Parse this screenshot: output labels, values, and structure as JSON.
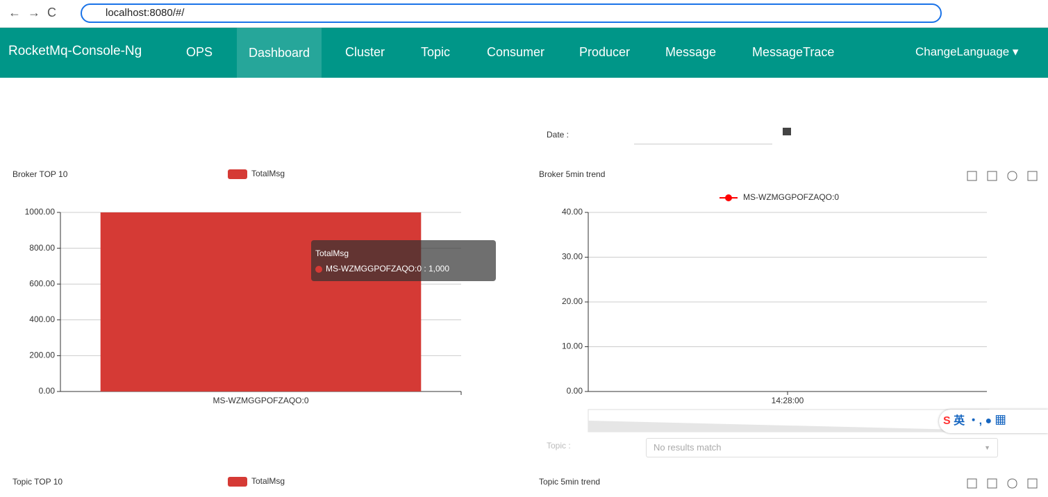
{
  "browser": {
    "url": "localhost:8080/#/"
  },
  "nav": {
    "brand": "RocketMq-Console-Ng",
    "items": [
      "OPS",
      "Dashboard",
      "Cluster",
      "Topic",
      "Consumer",
      "Producer",
      "Message",
      "MessageTrace"
    ],
    "active": "Dashboard",
    "language": "ChangeLanguage"
  },
  "date_label": "Date :",
  "topic_label": "Topic :",
  "topic_placeholder": "No results match",
  "ime": "英",
  "chart_data": [
    {
      "type": "bar",
      "title": "Broker TOP 10",
      "categories": [
        "MS-WZMGGPOFZAQO:0"
      ],
      "series": [
        {
          "name": "TotalMsg",
          "color": "#d53a35",
          "values": [
            1000
          ]
        }
      ],
      "ylim": [
        0,
        1000
      ],
      "yticks": [
        {
          "value": 0,
          "label": "0.00"
        },
        {
          "value": 200,
          "label": "200.00"
        },
        {
          "value": 400,
          "label": "400.00"
        },
        {
          "value": 600,
          "label": "600.00"
        },
        {
          "value": 800,
          "label": "800.00"
        },
        {
          "value": 1000,
          "label": "1000.00"
        }
      ],
      "grid": true,
      "tooltip": {
        "title": "TotalMsg",
        "text": "MS-WZMGGPOFZAQO:0 : 1,000"
      }
    },
    {
      "type": "line",
      "title": "Broker 5min trend",
      "categories": [
        "14:28:00"
      ],
      "series": [
        {
          "name": "MS-WZMGGPOFZAQO:0",
          "color": "#ff0000",
          "values": [
            null
          ]
        }
      ],
      "ylim": [
        0,
        40
      ],
      "yticks": [
        {
          "value": 0,
          "label": "0.00"
        },
        {
          "value": 10,
          "label": "10.00"
        },
        {
          "value": 20,
          "label": "20.00"
        },
        {
          "value": 30,
          "label": "30.00"
        },
        {
          "value": 40,
          "label": "40.00"
        }
      ],
      "grid": true
    },
    {
      "type": "bar",
      "title": "Topic TOP 10",
      "categories": [],
      "series": [
        {
          "name": "TotalMsg",
          "color": "#d53a35",
          "values": []
        }
      ]
    },
    {
      "type": "line",
      "title": "Topic 5min trend",
      "categories": [],
      "series": []
    }
  ]
}
